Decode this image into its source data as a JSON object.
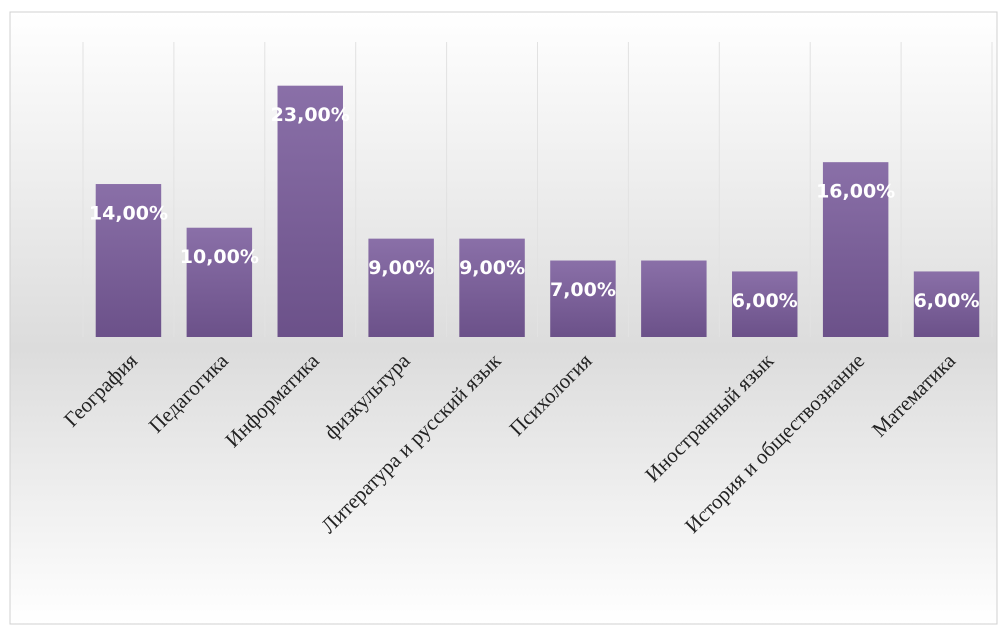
{
  "chart_data": {
    "type": "bar",
    "categories": [
      "География",
      "Педагогика",
      "Информатика",
      "физкультура",
      "Литература и русский язык",
      "Психология",
      null,
      "Иностранный язык",
      "История и обществознание",
      "Математика"
    ],
    "values": [
      14,
      10,
      23,
      9,
      9,
      7,
      7,
      6,
      16,
      6
    ],
    "value_labels": [
      "14,00%",
      "10,00%",
      "23,00%",
      "9,00%",
      "9,00%",
      "7,00%",
      null,
      "6,00%",
      "16,00%",
      "6,00%"
    ],
    "color": "#7a5c9c",
    "ylim": [
      0,
      27
    ],
    "grid": true
  }
}
